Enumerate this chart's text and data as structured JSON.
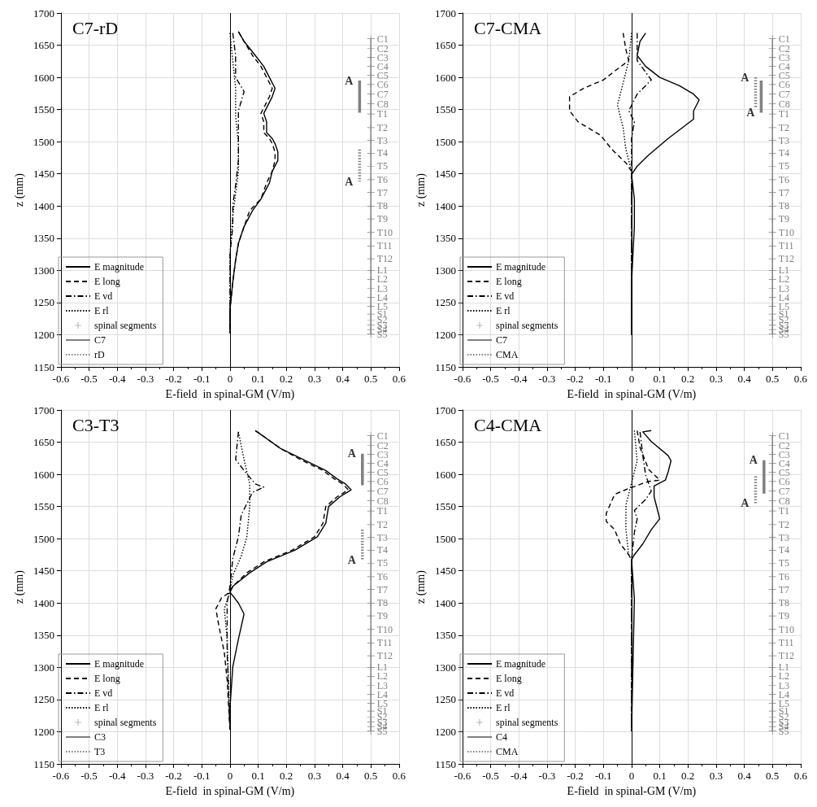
{
  "chart_data": [
    {
      "type": "line",
      "title": "C7-rD",
      "xlabel": "E-field  in spinal-GM (V/m)",
      "ylabel": "z (mm)",
      "xlim": [
        -0.6,
        0.6
      ],
      "xticks": [
        -0.6,
        -0.5,
        -0.4,
        -0.3,
        -0.2,
        -0.1,
        0,
        0.1,
        0.2,
        0.3,
        0.4,
        0.5,
        0.6
      ],
      "ylim": [
        1150,
        1700
      ],
      "yticks": [
        1150,
        1200,
        1250,
        1300,
        1350,
        1400,
        1450,
        1500,
        1550,
        1600,
        1650,
        1700
      ],
      "grid": true,
      "legend": "bottom left",
      "marker": "none",
      "ref_lines": [
        {
          "axis": "x",
          "value": 0,
          "color": "#000000"
        }
      ],
      "annotations": [
        {
          "text": "A",
          "x": 0.46,
          "y": 1595
        },
        {
          "text": "A",
          "x": 0.46,
          "y": 1438
        }
      ],
      "series": [
        {
          "name": "E magnitude",
          "color": "#000000",
          "line_style": "solid",
          "x": [
            0.03,
            0.05,
            0.09,
            0.12,
            0.14,
            0.16,
            0.15,
            0.12,
            0.13,
            0.13,
            0.15,
            0.16,
            0.17,
            0.17,
            0.15,
            0.14,
            0.11,
            0.08,
            0.05,
            0.03,
            0.02,
            0.01,
            0,
            0
          ],
          "values": [
            1671,
            1656,
            1634,
            1617,
            1600,
            1583,
            1570,
            1544,
            1531,
            1514,
            1505,
            1497,
            1484,
            1471,
            1454,
            1436,
            1411,
            1393,
            1368,
            1342,
            1316,
            1282,
            1239,
            1202
          ]
        },
        {
          "name": "E long",
          "color": "#000000",
          "line_style": "dashed",
          "x": [
            0.03,
            0.05,
            0.08,
            0.11,
            0.13,
            0.15,
            0.14,
            0.11,
            0.12,
            0.12,
            0.14,
            0.15,
            0.16,
            0.16,
            0.15,
            0.13,
            0.11,
            0.07,
            0.05,
            0.03,
            0.02,
            0.01,
            0,
            0
          ],
          "values": [
            1671,
            1656,
            1634,
            1617,
            1600,
            1583,
            1570,
            1544,
            1531,
            1514,
            1505,
            1497,
            1484,
            1471,
            1454,
            1436,
            1411,
            1393,
            1368,
            1342,
            1316,
            1282,
            1239,
            1202
          ]
        },
        {
          "name": "E vd",
          "color": "#000000",
          "line_style": "dashdot",
          "x": [
            0.01,
            0.02,
            0.02,
            0.05,
            0.03,
            0.03,
            0.03,
            0.02,
            0.01,
            0.01,
            0,
            0,
            0
          ],
          "values": [
            1669,
            1634,
            1600,
            1578,
            1548,
            1505,
            1471,
            1432,
            1402,
            1368,
            1325,
            1239,
            1204
          ]
        },
        {
          "name": "E rl",
          "color": "#000000",
          "line_style": "dotted",
          "x": [
            0,
            0.01,
            0.02,
            0.02,
            0.03,
            0.03,
            0.02,
            0.01,
            0,
            0
          ],
          "values": [
            1669,
            1626,
            1583,
            1540,
            1497,
            1454,
            1419,
            1385,
            1325,
            1204
          ]
        },
        {
          "name": "spinal segments",
          "color": "#808080",
          "line_style": "solid",
          "marker": "cross",
          "x": [
            0.5,
            0.5,
            0.5,
            0.5,
            0.5,
            0.5,
            0.5,
            0.5,
            0.5,
            0.5,
            0.5,
            0.5,
            0.5,
            0.5,
            0.5,
            0.5,
            0.5,
            0.5,
            0.5,
            0.5,
            0.5,
            0.5,
            0.5,
            0.5,
            0.5,
            0.5,
            0.5,
            0.5,
            0.5,
            0.5
          ],
          "values": [
            1660,
            1645,
            1631,
            1617,
            1603,
            1589,
            1574,
            1559,
            1543,
            1522,
            1502,
            1482,
            1462,
            1441,
            1421,
            1400,
            1380,
            1359,
            1338,
            1318,
            1300,
            1286,
            1272,
            1258,
            1244,
            1232,
            1223,
            1215,
            1208,
            1201
          ],
          "value_labels": [
            "C1",
            "C2",
            "C3",
            "C4",
            "C5",
            "C6",
            "C7",
            "C8",
            "T1",
            "T2",
            "T3",
            "T4",
            "T5",
            "T6",
            "T7",
            "T8",
            "T9",
            "T10",
            "T11",
            "T12",
            "L1",
            "L2",
            "L3",
            "L4",
            "L5",
            "S1",
            "S2",
            "S3",
            "S4",
            "S5"
          ]
        },
        {
          "name": "C7",
          "color": "#808080",
          "line_style": "solid",
          "x": [
            0.46,
            0.46
          ],
          "values": [
            1595,
            1545
          ]
        },
        {
          "name": "rD",
          "color": "#808080",
          "line_style": "dotted",
          "x": [
            0.46,
            0.46
          ],
          "values": [
            1488,
            1438
          ]
        }
      ]
    },
    {
      "type": "line",
      "title": "C7-CMA",
      "xlabel": "E-field  in spinal-GM (V/m)",
      "ylabel": "z (mm)",
      "xlim": [
        -0.6,
        0.6
      ],
      "xticks": [
        -0.6,
        -0.5,
        -0.4,
        -0.3,
        -0.2,
        -0.1,
        0,
        0.1,
        0.2,
        0.3,
        0.4,
        0.5,
        0.6
      ],
      "ylim": [
        1150,
        1700
      ],
      "yticks": [
        1150,
        1200,
        1250,
        1300,
        1350,
        1400,
        1450,
        1500,
        1550,
        1600,
        1650,
        1700
      ],
      "grid": true,
      "legend": "bottom left",
      "marker": "none",
      "ref_lines": [
        {
          "axis": "x",
          "value": 0,
          "color": "#000000"
        }
      ],
      "annotations": [
        {
          "text": "A",
          "x": 0.44,
          "y": 1600
        },
        {
          "text": "A",
          "x": 0.46,
          "y": 1545
        }
      ],
      "series": [
        {
          "name": "E magnitude",
          "color": "#000000",
          "line_style": "solid",
          "x": [
            0.05,
            0.03,
            0.02,
            0.05,
            0.1,
            0.17,
            0.22,
            0.24,
            0.22,
            0.22,
            0.13,
            0.06,
            0.02,
            0,
            0.01,
            0.01,
            0,
            0
          ],
          "values": [
            1669,
            1656,
            1634,
            1617,
            1600,
            1587,
            1574,
            1565,
            1548,
            1535,
            1505,
            1479,
            1462,
            1449,
            1411,
            1368,
            1282,
            1200
          ]
        },
        {
          "name": "E long",
          "color": "#000000",
          "line_style": "dashed",
          "x": [
            -0.03,
            -0.02,
            -0.01,
            -0.05,
            -0.1,
            -0.17,
            -0.22,
            -0.22,
            -0.19,
            -0.11,
            -0.07,
            -0.02,
            0,
            0,
            0
          ],
          "values": [
            1669,
            1643,
            1626,
            1613,
            1596,
            1583,
            1570,
            1548,
            1531,
            1510,
            1488,
            1467,
            1454,
            1411,
            1200
          ]
        },
        {
          "name": "E vd",
          "color": "#000000",
          "line_style": "dashdot",
          "x": [
            0.02,
            0.02,
            0.07,
            0.02,
            -0.01,
            0.01,
            0,
            0,
            0
          ],
          "values": [
            1669,
            1626,
            1596,
            1574,
            1548,
            1531,
            1505,
            1454,
            1200
          ]
        },
        {
          "name": "E rl",
          "color": "#000000",
          "line_style": "dotted",
          "x": [
            0,
            -0.01,
            -0.03,
            -0.05,
            -0.03,
            -0.02,
            0,
            0
          ],
          "values": [
            1669,
            1626,
            1591,
            1557,
            1522,
            1488,
            1454,
            1200
          ]
        },
        {
          "name": "spinal segments",
          "color": "#808080",
          "line_style": "solid",
          "marker": "cross",
          "x": [
            0.5,
            0.5,
            0.5,
            0.5,
            0.5,
            0.5,
            0.5,
            0.5,
            0.5,
            0.5,
            0.5,
            0.5,
            0.5,
            0.5,
            0.5,
            0.5,
            0.5,
            0.5,
            0.5,
            0.5,
            0.5,
            0.5,
            0.5,
            0.5,
            0.5,
            0.5,
            0.5,
            0.5,
            0.5,
            0.5
          ],
          "values": [
            1660,
            1645,
            1631,
            1617,
            1603,
            1589,
            1574,
            1559,
            1543,
            1522,
            1502,
            1482,
            1462,
            1441,
            1421,
            1400,
            1380,
            1359,
            1338,
            1318,
            1300,
            1286,
            1272,
            1258,
            1244,
            1232,
            1223,
            1215,
            1208,
            1201
          ],
          "value_labels": [
            "C1",
            "C2",
            "C3",
            "C4",
            "C5",
            "C6",
            "C7",
            "C8",
            "T1",
            "T2",
            "T3",
            "T4",
            "T5",
            "T6",
            "T7",
            "T8",
            "T9",
            "T10",
            "T11",
            "T12",
            "L1",
            "L2",
            "L3",
            "L4",
            "L5",
            "S1",
            "S2",
            "S3",
            "S4",
            "S5"
          ]
        },
        {
          "name": "C7",
          "color": "#808080",
          "line_style": "solid",
          "x": [
            0.46,
            0.46
          ],
          "values": [
            1595,
            1545
          ]
        },
        {
          "name": "CMA",
          "color": "#808080",
          "line_style": "dotted",
          "x": [
            0.44,
            0.44
          ],
          "values": [
            1600,
            1553
          ]
        }
      ]
    },
    {
      "type": "line",
      "title": "C3-T3",
      "xlabel": "E-field  in spinal-GM (V/m)",
      "ylabel": "z (mm)",
      "xlim": [
        -0.6,
        0.6
      ],
      "xticks": [
        -0.6,
        -0.5,
        -0.4,
        -0.3,
        -0.2,
        -0.1,
        0,
        0.1,
        0.2,
        0.3,
        0.4,
        0.5,
        0.6
      ],
      "ylim": [
        1150,
        1700
      ],
      "yticks": [
        1150,
        1200,
        1250,
        1300,
        1350,
        1400,
        1450,
        1500,
        1550,
        1600,
        1650,
        1700
      ],
      "grid": true,
      "legend": "bottom left",
      "marker": "none",
      "ref_lines": [
        {
          "axis": "x",
          "value": 0,
          "color": "#000000"
        }
      ],
      "annotations": [
        {
          "text": "A",
          "x": 0.47,
          "y": 1632
        },
        {
          "text": "A",
          "x": 0.47,
          "y": 1467
        }
      ],
      "series": [
        {
          "name": "E magnitude",
          "color": "#000000",
          "line_style": "solid",
          "x": [
            0.09,
            0.11,
            0.18,
            0.26,
            0.34,
            0.38,
            0.41,
            0.43,
            0.39,
            0.35,
            0.34,
            0.31,
            0.23,
            0.13,
            0.07,
            0.01,
            0,
            0.03,
            0.05,
            0.03,
            0.01,
            0,
            0
          ],
          "values": [
            1668,
            1662,
            1640,
            1623,
            1606,
            1593,
            1585,
            1576,
            1565,
            1550,
            1524,
            1503,
            1482,
            1464,
            1447,
            1426,
            1417,
            1400,
            1383,
            1344,
            1301,
            1237,
            1203
          ]
        },
        {
          "name": "E long",
          "color": "#000000",
          "line_style": "dashed",
          "x": [
            0.09,
            0.11,
            0.18,
            0.25,
            0.33,
            0.37,
            0.4,
            0.42,
            0.38,
            0.34,
            0.33,
            0.3,
            0.22,
            0.12,
            0.06,
            0.01,
            0,
            -0.03,
            -0.05,
            -0.04,
            -0.02,
            -0.01,
            0
          ],
          "values": [
            1668,
            1662,
            1640,
            1623,
            1606,
            1593,
            1585,
            1576,
            1565,
            1550,
            1524,
            1503,
            1482,
            1464,
            1447,
            1426,
            1417,
            1408,
            1391,
            1366,
            1323,
            1280,
            1203
          ]
        },
        {
          "name": "E vd",
          "color": "#000000",
          "line_style": "dashdot",
          "x": [
            0.03,
            0.02,
            0.05,
            0.09,
            0.12,
            0.08,
            0.04,
            0.03,
            0.01,
            0,
            -0.01,
            -0.01,
            0
          ],
          "values": [
            1666,
            1623,
            1606,
            1585,
            1580,
            1572,
            1537,
            1503,
            1469,
            1426,
            1400,
            1323,
            1203
          ]
        },
        {
          "name": "E rl",
          "color": "#000000",
          "line_style": "dotted",
          "x": [
            0.03,
            0.05,
            0.07,
            0.07,
            0.06,
            0.04,
            0.01,
            0,
            -0.02,
            -0.01,
            0
          ],
          "values": [
            1666,
            1623,
            1585,
            1550,
            1503,
            1473,
            1443,
            1417,
            1391,
            1344,
            1203
          ]
        },
        {
          "name": "spinal segments",
          "color": "#808080",
          "line_style": "solid",
          "marker": "cross",
          "x": [
            0.5,
            0.5,
            0.5,
            0.5,
            0.5,
            0.5,
            0.5,
            0.5,
            0.5,
            0.5,
            0.5,
            0.5,
            0.5,
            0.5,
            0.5,
            0.5,
            0.5,
            0.5,
            0.5,
            0.5,
            0.5,
            0.5,
            0.5,
            0.5,
            0.5,
            0.5,
            0.5,
            0.5,
            0.5,
            0.5
          ],
          "values": [
            1660,
            1645,
            1631,
            1617,
            1603,
            1589,
            1574,
            1559,
            1543,
            1522,
            1502,
            1482,
            1462,
            1441,
            1421,
            1400,
            1380,
            1359,
            1338,
            1318,
            1300,
            1286,
            1272,
            1258,
            1244,
            1232,
            1223,
            1215,
            1208,
            1201
          ],
          "value_labels": [
            "C1",
            "C2",
            "C3",
            "C4",
            "C5",
            "C6",
            "C7",
            "C8",
            "T1",
            "T2",
            "T3",
            "T4",
            "T5",
            "T6",
            "T7",
            "T8",
            "T9",
            "T10",
            "T11",
            "T12",
            "L1",
            "L2",
            "L3",
            "L4",
            "L5",
            "S1",
            "S2",
            "S3",
            "S4",
            "S5"
          ]
        },
        {
          "name": "C3",
          "color": "#808080",
          "line_style": "solid",
          "x": [
            0.47,
            0.47
          ],
          "values": [
            1632,
            1583
          ]
        },
        {
          "name": "T3",
          "color": "#808080",
          "line_style": "dotted",
          "x": [
            0.47,
            0.47
          ],
          "values": [
            1514,
            1467
          ]
        }
      ]
    },
    {
      "type": "line",
      "title": "C4-CMA",
      "xlabel": "E-field  in spinal-GM (V/m)",
      "ylabel": "z (mm)",
      "xlim": [
        -0.6,
        0.6
      ],
      "xticks": [
        -0.6,
        -0.5,
        -0.4,
        -0.3,
        -0.2,
        -0.1,
        0,
        0.1,
        0.2,
        0.3,
        0.4,
        0.5,
        0.6
      ],
      "ylim": [
        1150,
        1700
      ],
      "yticks": [
        1150,
        1200,
        1250,
        1300,
        1350,
        1400,
        1450,
        1500,
        1550,
        1600,
        1650,
        1700
      ],
      "grid": true,
      "legend": "bottom left",
      "marker": "none",
      "ref_lines": [
        {
          "axis": "x",
          "value": 0,
          "color": "#000000"
        }
      ],
      "annotations": [
        {
          "text": "A",
          "x": 0.47,
          "y": 1622
        },
        {
          "text": "A",
          "x": 0.44,
          "y": 1555
        }
      ],
      "series": [
        {
          "name": "E magnitude",
          "color": "#000000",
          "line_style": "solid",
          "x": [
            0.07,
            0.04,
            0.07,
            0.13,
            0.14,
            0.13,
            0.12,
            0.08,
            0.08,
            0.09,
            0.1,
            0.07,
            0.04,
            0.01,
            0,
            0.01,
            0
          ],
          "values": [
            1668,
            1666,
            1651,
            1629,
            1621,
            1604,
            1591,
            1582,
            1565,
            1548,
            1531,
            1514,
            1492,
            1475,
            1467,
            1407,
            1201
          ]
        },
        {
          "name": "E long",
          "color": "#000000",
          "line_style": "dashed",
          "x": [
            0.02,
            0.03,
            0.06,
            0.1,
            0.06,
            -0.01,
            -0.06,
            -0.09,
            -0.09,
            -0.06,
            -0.04,
            -0.01,
            0,
            0
          ],
          "values": [
            1668,
            1642,
            1608,
            1591,
            1589,
            1578,
            1569,
            1539,
            1527,
            1514,
            1492,
            1475,
            1467,
            1201
          ]
        },
        {
          "name": "E vd",
          "color": "#000000",
          "line_style": "dashdot",
          "x": [
            0.03,
            0.04,
            0.05,
            0.07,
            0.05,
            0.01,
            0.02,
            0.01,
            0,
            0
          ],
          "values": [
            1666,
            1629,
            1599,
            1574,
            1561,
            1544,
            1531,
            1510,
            1467,
            1201
          ]
        },
        {
          "name": "E rl",
          "color": "#000000",
          "line_style": "dotted",
          "x": [
            0.01,
            0.02,
            0,
            -0.02,
            -0.02,
            -0.01,
            0,
            0
          ],
          "values": [
            1668,
            1621,
            1587,
            1552,
            1514,
            1475,
            1467,
            1201
          ]
        },
        {
          "name": "spinal segments",
          "color": "#808080",
          "line_style": "solid",
          "marker": "cross",
          "x": [
            0.5,
            0.5,
            0.5,
            0.5,
            0.5,
            0.5,
            0.5,
            0.5,
            0.5,
            0.5,
            0.5,
            0.5,
            0.5,
            0.5,
            0.5,
            0.5,
            0.5,
            0.5,
            0.5,
            0.5,
            0.5,
            0.5,
            0.5,
            0.5,
            0.5,
            0.5,
            0.5,
            0.5,
            0.5,
            0.5
          ],
          "values": [
            1660,
            1645,
            1631,
            1617,
            1603,
            1589,
            1574,
            1559,
            1543,
            1522,
            1502,
            1482,
            1462,
            1441,
            1421,
            1400,
            1380,
            1359,
            1338,
            1318,
            1300,
            1286,
            1272,
            1258,
            1244,
            1232,
            1223,
            1215,
            1208,
            1201
          ],
          "value_labels": [
            "C1",
            "C2",
            "C3",
            "C4",
            "C5",
            "C6",
            "C7",
            "C8",
            "T1",
            "T2",
            "T3",
            "T4",
            "T5",
            "T6",
            "T7",
            "T8",
            "T9",
            "T10",
            "T11",
            "T12",
            "L1",
            "L2",
            "L3",
            "L4",
            "L5",
            "S1",
            "S2",
            "S3",
            "S4",
            "S5"
          ]
        },
        {
          "name": "C4",
          "color": "#808080",
          "line_style": "solid",
          "x": [
            0.47,
            0.47
          ],
          "values": [
            1622,
            1570
          ]
        },
        {
          "name": "CMA",
          "color": "#808080",
          "line_style": "dotted",
          "x": [
            0.44,
            0.44
          ],
          "values": [
            1597,
            1555
          ]
        }
      ]
    }
  ]
}
